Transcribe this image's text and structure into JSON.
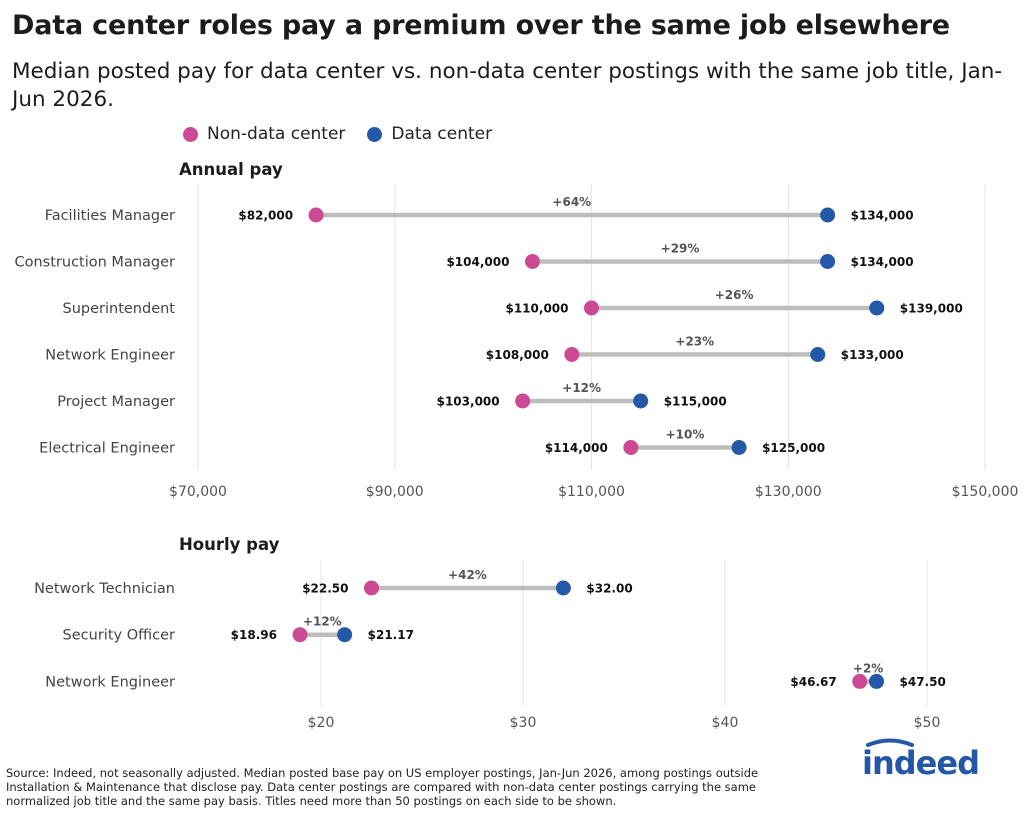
{
  "title": "Data center roles pay a premium over the same job elsewhere",
  "subtitle": "Median posted pay for data center vs. non-data center postings with the same job title, Jan-Jun 2026.",
  "legend": {
    "non_dc_label": "Non-data center",
    "dc_label": "Data center"
  },
  "colors": {
    "non_dc": "#cc4a93",
    "dc": "#2459a9",
    "connector": "#bdbdbd",
    "grid": "#e3e3e3",
    "brand": "#2557a7"
  },
  "source": "Source: Indeed, not seasonally adjusted. Median posted base pay on US employer postings, Jan-Jun 2026, among postings outside Installation & Maintenance that disclose pay. Data center postings are compared with non-data center postings carrying the same normalized job title and the same pay basis. Titles need more than 50 postings on each side to be shown.",
  "logo_text": "indeed",
  "chart_data": [
    {
      "type": "dumbbell",
      "title": "Annual pay",
      "xlim": [
        70000,
        150000
      ],
      "xticks": [
        70000,
        90000,
        110000,
        130000,
        150000
      ],
      "xtick_labels": [
        "$70,000",
        "$90,000",
        "$110,000",
        "$130,000",
        "$150,000"
      ],
      "grid": true,
      "rows": [
        {
          "label": "Facilities Manager",
          "non_dc": 82000,
          "dc": 134000,
          "non_dc_label": "$82,000",
          "dc_label": "$134,000",
          "diff": "+64%"
        },
        {
          "label": "Construction Manager",
          "non_dc": 104000,
          "dc": 134000,
          "non_dc_label": "$104,000",
          "dc_label": "$134,000",
          "diff": "+29%"
        },
        {
          "label": "Superintendent",
          "non_dc": 110000,
          "dc": 139000,
          "non_dc_label": "$110,000",
          "dc_label": "$139,000",
          "diff": "+26%"
        },
        {
          "label": "Network Engineer",
          "non_dc": 108000,
          "dc": 133000,
          "non_dc_label": "$108,000",
          "dc_label": "$133,000",
          "diff": "+23%"
        },
        {
          "label": "Project Manager",
          "non_dc": 103000,
          "dc": 115000,
          "non_dc_label": "$103,000",
          "dc_label": "$115,000",
          "diff": "+12%"
        },
        {
          "label": "Electrical Engineer",
          "non_dc": 114000,
          "dc": 125000,
          "non_dc_label": "$114,000",
          "dc_label": "$125,000",
          "diff": "+10%"
        }
      ]
    },
    {
      "type": "dumbbell",
      "title": "Hourly pay",
      "xlim": [
        20,
        50
      ],
      "xticks": [
        20,
        30,
        40,
        50
      ],
      "xtick_labels": [
        "$20",
        "$30",
        "$40",
        "$50"
      ],
      "grid": true,
      "rows": [
        {
          "label": "Network Technician",
          "non_dc": 22.5,
          "dc": 32.0,
          "non_dc_label": "$22.50",
          "dc_label": "$32.00",
          "diff": "+42%"
        },
        {
          "label": "Security Officer",
          "non_dc": 18.96,
          "dc": 21.17,
          "non_dc_label": "$18.96",
          "dc_label": "$21.17",
          "diff": "+12%"
        },
        {
          "label": "Network Engineer",
          "non_dc": 46.67,
          "dc": 47.5,
          "non_dc_label": "$46.67",
          "dc_label": "$47.50",
          "diff": "+2%"
        }
      ]
    }
  ]
}
